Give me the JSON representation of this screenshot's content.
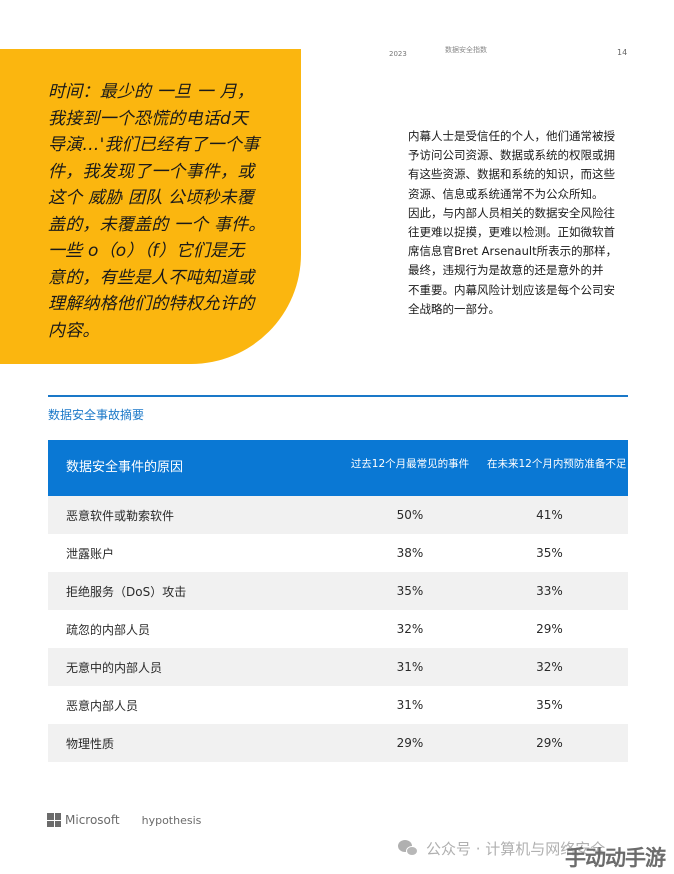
{
  "header": {
    "year": "2023",
    "doc_title": "数据安全指数",
    "page_number": "14"
  },
  "quote": {
    "lines": [
      "时间：最少的 一旦 一 月，",
      "我接到一个恐慌的电话d天",
      "导演…'我们已经有了一个事",
      "件，我发现了一个事件，或",
      "这个 威胁 团队 公顷秒未覆",
      "盖的，未覆盖的 一个 事件。",
      "一些 o（o）（f）它们是无",
      "意的，有些是人不吨知道或",
      "理解纳格他们的特权允许的",
      "内容。"
    ],
    "background_color": "#fbb60f"
  },
  "body_text": {
    "lines": [
      "内幕人士是受信任的个人，他们通常被授",
      "予访问公司资源、数据或系统的权限或拥",
      "有这些资源、数据和系统的知识，而这些",
      "资源、信息或系统通常不为公众所知。",
      "因此，与内部人员相关的数据安全风险往",
      "往更难以捉摸，更难以检测。正如微软首",
      "席信息官Bret Arsenault所表示的那样，",
      " 最终，违规行为是故意的还是意外的并",
      "不重要。内幕风险计划应该是每个公司安",
      "全战略的一部分。"
    ]
  },
  "section": {
    "title": "数据安全事故摘要",
    "accent_color": "#0a78d4"
  },
  "table": {
    "headers": [
      "数据安全事件的原因",
      "过去12个月最常见的事件",
      "在未来12个月内预防准备不足"
    ],
    "rows": [
      {
        "cause": "恶意软件或勒索软件",
        "past": "50%",
        "future": "41%"
      },
      {
        "cause": "泄露账户",
        "past": "38%",
        "future": "35%"
      },
      {
        "cause": "拒绝服务（DoS）攻击",
        "past": "35%",
        "future": "33%"
      },
      {
        "cause": "疏忽的内部人员",
        "past": "32%",
        "future": "29%"
      },
      {
        "cause": "无意中的内部人员",
        "past": "31%",
        "future": "32%"
      },
      {
        "cause": "恶意内部人员",
        "past": "31%",
        "future": "35%"
      },
      {
        "cause": "物理性质",
        "past": "29%",
        "future": "29%"
      }
    ]
  },
  "footer": {
    "brand": "Microsoft",
    "partner": "hypothesis",
    "watermark": "公众号 · 计算机与网络安全",
    "stamp": "手动动手游"
  }
}
